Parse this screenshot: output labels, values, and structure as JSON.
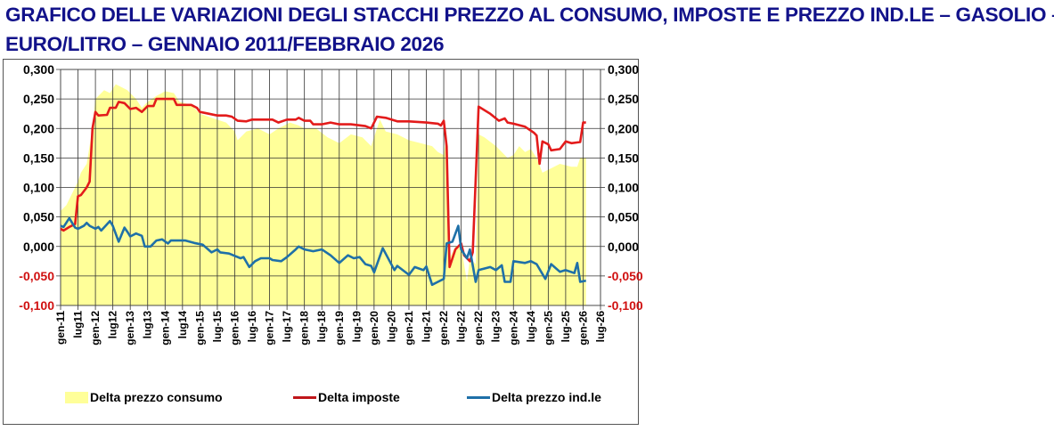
{
  "title_line1": "GRAFICO DELLE VARIAZIONI DEGLI STACCHI PREZZO AL CONSUMO, IMPOSTE E PREZZO IND.LE – GASOLIO –",
  "title_line2": "EURO/LITRO – GENNAIO 2011/FEBBRAIO 2026",
  "chart_data": {
    "type": "line",
    "title": "GRAFICO DELLE VARIAZIONI DEGLI STACCHI PREZZO AL CONSUMO, IMPOSTE E PREZZO IND.LE – GASOLIO – EURO/LITRO – GENNAIO 2011/FEBBRAIO 2026",
    "x_unit": "months since gen-11",
    "ylim": [
      -0.1,
      0.3
    ],
    "y_ticks": [
      "0,300",
      "0,250",
      "0,200",
      "0,150",
      "0,100",
      "0,050",
      "0,000",
      "-0,050",
      "-0,100"
    ],
    "y_tick_values": [
      0.3,
      0.25,
      0.2,
      0.15,
      0.1,
      0.05,
      0,
      -0.05,
      -0.1
    ],
    "x_ticks": [
      "gen-11",
      "lug11",
      "gen-12",
      "lug12",
      "gen-13",
      "lug13",
      "gen-14",
      "lug14",
      "gen-15",
      "lug-15",
      "gen-16",
      "lug-16",
      "gen-17",
      "lug-17",
      "gen-18",
      "lug-18",
      "gen-19",
      "lug-19",
      "gen-20",
      "lug-20",
      "gen-21",
      "lug-21",
      "gen-22",
      "lug-22",
      "gen-22",
      "lug-23",
      "gen-24",
      "lug-24",
      "gen-25",
      "lug-25",
      "gen-26",
      "lug-26"
    ],
    "grid": true,
    "legend_position": "bottom",
    "colors": {
      "consumo": "#ffff99",
      "imposte": "#e31b1b",
      "industriale": "#1f70a8",
      "negative_tick": "#d01010",
      "title": "#12128a"
    },
    "series": [
      {
        "name": "Delta prezzo consumo",
        "kind": "area",
        "points": [
          [
            0,
            0.06
          ],
          [
            2,
            0.07
          ],
          [
            4,
            0.09
          ],
          [
            6,
            0.11
          ],
          [
            7,
            0.125
          ],
          [
            9,
            0.14
          ],
          [
            11,
            0.2
          ],
          [
            12,
            0.25
          ],
          [
            15,
            0.265
          ],
          [
            17,
            0.26
          ],
          [
            19,
            0.275
          ],
          [
            21,
            0.27
          ],
          [
            23,
            0.265
          ],
          [
            26,
            0.25
          ],
          [
            28,
            0.235
          ],
          [
            30,
            0.245
          ],
          [
            33,
            0.255
          ],
          [
            36,
            0.263
          ],
          [
            39,
            0.26
          ],
          [
            41,
            0.245
          ],
          [
            45,
            0.24
          ],
          [
            48,
            0.225
          ],
          [
            52,
            0.218
          ],
          [
            57,
            0.21
          ],
          [
            60,
            0.195
          ],
          [
            61,
            0.18
          ],
          [
            64,
            0.195
          ],
          [
            68,
            0.2
          ],
          [
            72,
            0.19
          ],
          [
            75,
            0.2
          ],
          [
            79,
            0.21
          ],
          [
            82,
            0.205
          ],
          [
            84,
            0.2
          ],
          [
            88,
            0.2
          ],
          [
            92,
            0.185
          ],
          [
            96,
            0.175
          ],
          [
            100,
            0.19
          ],
          [
            104,
            0.185
          ],
          [
            107,
            0.17
          ],
          [
            110,
            0.215
          ],
          [
            112,
            0.195
          ],
          [
            116,
            0.19
          ],
          [
            120,
            0.18
          ],
          [
            124,
            0.175
          ],
          [
            128,
            0.17
          ],
          [
            130,
            0.16
          ],
          [
            132,
            0.155
          ],
          [
            133,
            0.19
          ],
          [
            134,
            -0.02
          ],
          [
            136,
            0.0
          ],
          [
            138,
            0.0
          ],
          [
            140,
            -0.06
          ],
          [
            141,
            -0.02
          ],
          [
            143,
            -0.03
          ],
          [
            144,
            0.19
          ],
          [
            146,
            0.185
          ],
          [
            150,
            0.17
          ],
          [
            152,
            0.16
          ],
          [
            154,
            0.15
          ],
          [
            156,
            0.155
          ],
          [
            158,
            0.17
          ],
          [
            160,
            0.16
          ],
          [
            162,
            0.165
          ],
          [
            164,
            0.15
          ],
          [
            166,
            0.125
          ],
          [
            168,
            0.13
          ],
          [
            172,
            0.14
          ],
          [
            176,
            0.135
          ],
          [
            178,
            0.135
          ],
          [
            179,
            0.15
          ],
          [
            181,
            0.15
          ]
        ]
      },
      {
        "name": "Delta imposte",
        "kind": "line",
        "points": [
          [
            0,
            0.03
          ],
          [
            1,
            0.027
          ],
          [
            3,
            0.033
          ],
          [
            5,
            0.038
          ],
          [
            6,
            0.085
          ],
          [
            7,
            0.087
          ],
          [
            9,
            0.1
          ],
          [
            10,
            0.11
          ],
          [
            11,
            0.2
          ],
          [
            12,
            0.228
          ],
          [
            13,
            0.222
          ],
          [
            16,
            0.223
          ],
          [
            17,
            0.235
          ],
          [
            19,
            0.235
          ],
          [
            20,
            0.245
          ],
          [
            22,
            0.243
          ],
          [
            24,
            0.233
          ],
          [
            26,
            0.235
          ],
          [
            28,
            0.228
          ],
          [
            30,
            0.238
          ],
          [
            32,
            0.238
          ],
          [
            33,
            0.25
          ],
          [
            35,
            0.25
          ],
          [
            39,
            0.25
          ],
          [
            40,
            0.24
          ],
          [
            45,
            0.24
          ],
          [
            47,
            0.235
          ],
          [
            48,
            0.228
          ],
          [
            51,
            0.225
          ],
          [
            54,
            0.222
          ],
          [
            57,
            0.222
          ],
          [
            59,
            0.22
          ],
          [
            61,
            0.213
          ],
          [
            64,
            0.212
          ],
          [
            66,
            0.215
          ],
          [
            73,
            0.215
          ],
          [
            75,
            0.21
          ],
          [
            78,
            0.215
          ],
          [
            81,
            0.215
          ],
          [
            82,
            0.218
          ],
          [
            84,
            0.213
          ],
          [
            86,
            0.213
          ],
          [
            87,
            0.207
          ],
          [
            90,
            0.207
          ],
          [
            93,
            0.21
          ],
          [
            96,
            0.207
          ],
          [
            100,
            0.207
          ],
          [
            105,
            0.204
          ],
          [
            107,
            0.2
          ],
          [
            109,
            0.22
          ],
          [
            112,
            0.218
          ],
          [
            116,
            0.212
          ],
          [
            120,
            0.212
          ],
          [
            126,
            0.21
          ],
          [
            130,
            0.208
          ],
          [
            131,
            0.205
          ],
          [
            132,
            0.213
          ],
          [
            133,
            0.17
          ],
          [
            134,
            -0.035
          ],
          [
            136,
            -0.005
          ],
          [
            138,
            0.005
          ],
          [
            139,
            -0.015
          ],
          [
            141,
            -0.025
          ],
          [
            142,
            -0.01
          ],
          [
            144,
            0.237
          ],
          [
            148,
            0.225
          ],
          [
            151,
            0.213
          ],
          [
            153,
            0.217
          ],
          [
            154,
            0.21
          ],
          [
            156,
            0.208
          ],
          [
            160,
            0.203
          ],
          [
            163,
            0.193
          ],
          [
            164,
            0.188
          ],
          [
            165,
            0.14
          ],
          [
            166,
            0.178
          ],
          [
            168,
            0.173
          ],
          [
            169,
            0.163
          ],
          [
            172,
            0.165
          ],
          [
            174,
            0.178
          ],
          [
            176,
            0.175
          ],
          [
            179,
            0.177
          ],
          [
            180,
            0.21
          ],
          [
            181,
            0.21
          ]
        ]
      },
      {
        "name": "Delta prezzo ind.le",
        "kind": "line",
        "points": [
          [
            0,
            0.035
          ],
          [
            1,
            0.033
          ],
          [
            3,
            0.048
          ],
          [
            4,
            0.04
          ],
          [
            5,
            0.032
          ],
          [
            6,
            0.03
          ],
          [
            8,
            0.035
          ],
          [
            9,
            0.04
          ],
          [
            10,
            0.035
          ],
          [
            12,
            0.03
          ],
          [
            13,
            0.033
          ],
          [
            14,
            0.027
          ],
          [
            17,
            0.043
          ],
          [
            18,
            0.035
          ],
          [
            20,
            0.008
          ],
          [
            22,
            0.032
          ],
          [
            23,
            0.025
          ],
          [
            24,
            0.017
          ],
          [
            26,
            0.022
          ],
          [
            28,
            0.018
          ],
          [
            29,
            0.0
          ],
          [
            31,
            0.0
          ],
          [
            33,
            0.01
          ],
          [
            35,
            0.012
          ],
          [
            37,
            0.005
          ],
          [
            38,
            0.01
          ],
          [
            43,
            0.01
          ],
          [
            46,
            0.006
          ],
          [
            49,
            0.003
          ],
          [
            52,
            -0.01
          ],
          [
            54,
            -0.005
          ],
          [
            55,
            -0.01
          ],
          [
            58,
            -0.012
          ],
          [
            62,
            -0.02
          ],
          [
            63,
            -0.018
          ],
          [
            65,
            -0.035
          ],
          [
            67,
            -0.025
          ],
          [
            69,
            -0.02
          ],
          [
            72,
            -0.02
          ],
          [
            73,
            -0.023
          ],
          [
            76,
            -0.025
          ],
          [
            78,
            -0.018
          ],
          [
            81,
            -0.005
          ],
          [
            82,
            0.0
          ],
          [
            84,
            -0.005
          ],
          [
            87,
            -0.008
          ],
          [
            90,
            -0.005
          ],
          [
            93,
            -0.015
          ],
          [
            96,
            -0.028
          ],
          [
            99,
            -0.015
          ],
          [
            101,
            -0.02
          ],
          [
            103,
            -0.018
          ],
          [
            105,
            -0.03
          ],
          [
            107,
            -0.033
          ],
          [
            108,
            -0.044
          ],
          [
            111,
            -0.003
          ],
          [
            115,
            -0.04
          ],
          [
            116,
            -0.033
          ],
          [
            120,
            -0.048
          ],
          [
            122,
            -0.035
          ],
          [
            125,
            -0.04
          ],
          [
            126,
            -0.034
          ],
          [
            128,
            -0.065
          ],
          [
            130,
            -0.06
          ],
          [
            132,
            -0.055
          ],
          [
            133,
            0.005
          ],
          [
            135,
            0.008
          ],
          [
            137,
            0.035
          ],
          [
            138,
            -0.005
          ],
          [
            140,
            -0.02
          ],
          [
            141,
            -0.005
          ],
          [
            143,
            -0.06
          ],
          [
            144,
            -0.04
          ],
          [
            148,
            -0.035
          ],
          [
            150,
            -0.04
          ],
          [
            152,
            -0.032
          ],
          [
            153,
            -0.06
          ],
          [
            155,
            -0.06
          ],
          [
            156,
            -0.025
          ],
          [
            160,
            -0.028
          ],
          [
            162,
            -0.025
          ],
          [
            164,
            -0.03
          ],
          [
            167,
            -0.055
          ],
          [
            169,
            -0.03
          ],
          [
            172,
            -0.043
          ],
          [
            174,
            -0.04
          ],
          [
            177,
            -0.045
          ],
          [
            178,
            -0.028
          ],
          [
            179,
            -0.06
          ],
          [
            181,
            -0.058
          ]
        ]
      }
    ]
  }
}
